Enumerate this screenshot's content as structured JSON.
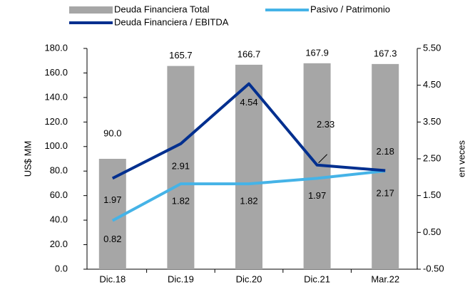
{
  "chart_data": {
    "type": "bar_line",
    "categories": [
      "Dic.18",
      "Dic.19",
      "Dic.20",
      "Dic.21",
      "Mar.22"
    ],
    "series": [
      {
        "name": "Deuda Financiera Total",
        "type": "bar",
        "color": "#a6a6a6",
        "values": [
          90.0,
          165.7,
          166.7,
          167.9,
          167.3
        ],
        "value_labels": [
          "90.0",
          "165.7",
          "166.7",
          "167.9",
          "167.3"
        ]
      },
      {
        "name": "Pasivo / Patrimonio",
        "type": "line",
        "axis": "y2",
        "color": "#45b3e7",
        "values": [
          0.82,
          1.82,
          1.82,
          1.97,
          2.17
        ],
        "value_labels": [
          "0.82",
          "1.82",
          "1.82",
          "1.97",
          "2.17"
        ]
      },
      {
        "name": "Deuda Financiera / EBITDA",
        "type": "line",
        "axis": "y2",
        "color": "#002f8f",
        "values": [
          1.97,
          2.91,
          4.54,
          2.33,
          2.18
        ],
        "value_labels": [
          "1.97",
          "2.91",
          "4.54",
          "2.33",
          "2.18"
        ]
      }
    ],
    "ylabel": "US$ MM",
    "y2label": "en veces",
    "ylim": [
      0,
      180
    ],
    "yticks": [
      {
        "value": 0,
        "label": "0.0"
      },
      {
        "value": 20,
        "label": "20.0"
      },
      {
        "value": 40,
        "label": "40.0"
      },
      {
        "value": 60,
        "label": "60.0"
      },
      {
        "value": 80,
        "label": "80.0"
      },
      {
        "value": 100,
        "label": "100.0"
      },
      {
        "value": 120,
        "label": "120.0"
      },
      {
        "value": 140,
        "label": "140.0"
      },
      {
        "value": 160,
        "label": "160.0"
      },
      {
        "value": 180,
        "label": "180.0"
      }
    ],
    "y2lim": [
      -0.5,
      5.5
    ],
    "y2ticks": [
      {
        "value": -0.5,
        "label": "-0.50"
      },
      {
        "value": 0.5,
        "label": "0.50"
      },
      {
        "value": 1.5,
        "label": "1.50"
      },
      {
        "value": 2.5,
        "label": "2.50"
      },
      {
        "value": 3.5,
        "label": "3.50"
      },
      {
        "value": 4.5,
        "label": "4.50"
      },
      {
        "value": 5.5,
        "label": "5.50"
      }
    ],
    "grid": false,
    "legend": "top"
  }
}
